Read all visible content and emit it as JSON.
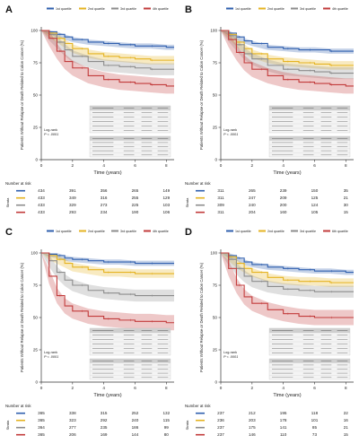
{
  "colors": {
    "q1": "#2f5fae",
    "q2": "#e5b321",
    "q3": "#8c8c8c",
    "q4": "#c23b3b"
  },
  "common": {
    "ylabel": "Patients Without Relapse or Death Related to Colon Cancer (%)",
    "xlabel": "Time (years)",
    "risk_title": "Number at risk",
    "strata_label": "Strata",
    "legend": [
      "1st quartile",
      "2nd quartile",
      "3rd quartile",
      "4th quartile"
    ],
    "legend_alt_last": "6th quartile",
    "yticks": [
      0,
      25,
      50,
      75,
      100
    ],
    "xticks": [
      0,
      2,
      4,
      6,
      8
    ]
  },
  "chart_data": [
    {
      "panel": "A",
      "type": "line",
      "xlabel": "Time (years)",
      "ylabel": "Patients Without Relapse or Death Related to Colon Cancer (%)",
      "xlim": [
        0,
        8.5
      ],
      "ylim": [
        0,
        100
      ],
      "grid": false,
      "legend_position": "top",
      "logrank": [
        "Log-rank",
        "P < .0001"
      ],
      "series": [
        {
          "name": "1st quartile",
          "x": [
            0,
            0.5,
            1,
            1.5,
            2,
            3,
            4,
            5,
            6,
            7,
            8,
            8.5
          ],
          "y": [
            100,
            99,
            97,
            95,
            93,
            91,
            90,
            89,
            88,
            88,
            87,
            87
          ]
        },
        {
          "name": "2nd quartile",
          "x": [
            0,
            0.5,
            1,
            1.5,
            2,
            3,
            4,
            5,
            6,
            7,
            8,
            8.5
          ],
          "y": [
            100,
            98,
            94,
            90,
            86,
            82,
            80,
            79,
            78,
            77,
            77,
            77
          ]
        },
        {
          "name": "3rd quartile",
          "x": [
            0,
            0.5,
            1,
            1.5,
            2,
            3,
            4,
            5,
            6,
            7,
            8,
            8.5
          ],
          "y": [
            100,
            97,
            91,
            85,
            80,
            76,
            73,
            72,
            71,
            70,
            70,
            70
          ]
        },
        {
          "name": "4th quartile",
          "x": [
            0,
            0.5,
            1,
            1.5,
            2,
            3,
            4,
            5,
            6,
            7,
            8,
            8.5
          ],
          "y": [
            100,
            94,
            84,
            76,
            71,
            65,
            62,
            60,
            59,
            58,
            57,
            57
          ]
        }
      ],
      "risk_table": [
        {
          "name": "1st quartile",
          "values": [
            "434",
            "391",
            "356",
            "265",
            "149"
          ]
        },
        {
          "name": "2nd quartile",
          "values": [
            "433",
            "349",
            "316",
            "255",
            "129"
          ]
        },
        {
          "name": "3rd quartile",
          "values": [
            "433",
            "329",
            "273",
            "225",
            "103"
          ]
        },
        {
          "name": "4th quartile",
          "values": [
            "433",
            "293",
            "234",
            "190",
            "106"
          ]
        }
      ]
    },
    {
      "panel": "B",
      "type": "line",
      "xlabel": "Time (years)",
      "ylabel": "Patients Without Relapse or Death Related to Colon Cancer (%)",
      "xlim": [
        0,
        8.5
      ],
      "ylim": [
        0,
        100
      ],
      "grid": false,
      "legend_position": "top",
      "logrank": [
        "Log-rank",
        "P < .0001"
      ],
      "series": [
        {
          "name": "1st quartile",
          "x": [
            0,
            0.5,
            1,
            1.5,
            2,
            3,
            4,
            5,
            6,
            7,
            8,
            8.5
          ],
          "y": [
            100,
            98,
            95,
            92,
            90,
            87,
            86,
            85,
            85,
            84,
            84,
            84
          ]
        },
        {
          "name": "2nd quartile",
          "x": [
            0,
            0.5,
            1,
            1.5,
            2,
            3,
            4,
            5,
            6,
            7,
            8,
            8.5
          ],
          "y": [
            100,
            97,
            91,
            86,
            82,
            78,
            76,
            75,
            74,
            73,
            73,
            73
          ]
        },
        {
          "name": "3rd quartile",
          "x": [
            0,
            0.5,
            1,
            1.5,
            2,
            3,
            4,
            5,
            6,
            7,
            8,
            8.5
          ],
          "y": [
            100,
            96,
            89,
            82,
            78,
            73,
            70,
            69,
            68,
            67,
            67,
            67
          ]
        },
        {
          "name": "4th quartile",
          "x": [
            0,
            0.5,
            1,
            1.5,
            2,
            3,
            4,
            5,
            6,
            7,
            8,
            8.5
          ],
          "y": [
            100,
            93,
            83,
            75,
            70,
            65,
            62,
            60,
            59,
            58,
            57,
            57
          ]
        }
      ],
      "risk_table": [
        {
          "name": "1st quartile",
          "values": [
            "311",
            "265",
            "239",
            "150",
            "35"
          ]
        },
        {
          "name": "2nd quartile",
          "values": [
            "311",
            "247",
            "209",
            "125",
            "21"
          ]
        },
        {
          "name": "3rd quartile",
          "values": [
            "309",
            "240",
            "200",
            "124",
            "30"
          ]
        },
        {
          "name": "4th quartile",
          "values": [
            "311",
            "204",
            "160",
            "105",
            "15"
          ]
        }
      ]
    },
    {
      "panel": "C",
      "type": "line",
      "xlabel": "Time (years)",
      "ylabel": "Patients Without Relapse or Death Related to Colon Cancer (%)",
      "xlim": [
        0,
        8.5
      ],
      "ylim": [
        0,
        100
      ],
      "grid": false,
      "legend_position": "top",
      "logrank": [
        "Log-rank",
        "P < .0001"
      ],
      "series": [
        {
          "name": "1st quartile",
          "x": [
            0,
            0.5,
            1,
            1.5,
            2,
            3,
            4,
            5,
            6,
            7,
            8,
            8.5
          ],
          "y": [
            100,
            99,
            98,
            96,
            95,
            94,
            93,
            93,
            92,
            92,
            92,
            92
          ]
        },
        {
          "name": "2nd quartile",
          "x": [
            0,
            0.5,
            1,
            1.5,
            2,
            3,
            4,
            5,
            6,
            7,
            8,
            8.5
          ],
          "y": [
            100,
            98,
            95,
            92,
            89,
            87,
            85,
            85,
            84,
            84,
            84,
            84
          ]
        },
        {
          "name": "3rd quartile",
          "x": [
            0,
            0.5,
            1,
            1.5,
            2,
            3,
            4,
            5,
            6,
            7,
            8,
            8.5
          ],
          "y": [
            100,
            94,
            85,
            79,
            75,
            71,
            69,
            68,
            67,
            67,
            67,
            67
          ]
        },
        {
          "name": "4th quartile",
          "x": [
            0,
            0.5,
            1,
            1.5,
            2,
            3,
            4,
            5,
            6,
            7,
            8,
            8.5
          ],
          "y": [
            100,
            82,
            67,
            59,
            55,
            51,
            49,
            48,
            47,
            47,
            46,
            46
          ]
        }
      ],
      "risk_table": [
        {
          "name": "1st quartile",
          "values": [
            "365",
            "338",
            "315",
            "252",
            "132"
          ]
        },
        {
          "name": "2nd quartile",
          "values": [
            "365",
            "323",
            "292",
            "240",
            "115"
          ]
        },
        {
          "name": "3rd quartile",
          "values": [
            "364",
            "277",
            "235",
            "186",
            "99"
          ]
        },
        {
          "name": "4th quartile",
          "values": [
            "365",
            "206",
            "169",
            "144",
            "80"
          ]
        }
      ]
    },
    {
      "panel": "D",
      "type": "line",
      "xlabel": "Time (years)",
      "ylabel": "Patients Without Relapse or Death Related to Colon Cancer (%)",
      "xlim": [
        0,
        8.5
      ],
      "ylim": [
        0,
        100
      ],
      "grid": false,
      "legend_position": "top",
      "logrank": [
        "Log-rank",
        "P < .0001"
      ],
      "series": [
        {
          "name": "1st quartile",
          "x": [
            0,
            0.5,
            1,
            1.5,
            2,
            3,
            4,
            5,
            6,
            7,
            8,
            8.5
          ],
          "y": [
            100,
            98,
            96,
            93,
            91,
            89,
            88,
            87,
            86,
            86,
            85,
            85
          ]
        },
        {
          "name": "2nd quartile",
          "x": [
            0,
            0.5,
            1,
            1.5,
            2,
            3,
            4,
            5,
            6,
            7,
            8,
            8.5
          ],
          "y": [
            100,
            97,
            92,
            88,
            85,
            81,
            79,
            78,
            78,
            77,
            77,
            77
          ]
        },
        {
          "name": "3rd quartile",
          "x": [
            0,
            0.5,
            1,
            1.5,
            2,
            3,
            4,
            5,
            6,
            7,
            8,
            8.5
          ],
          "y": [
            100,
            95,
            88,
            82,
            78,
            74,
            72,
            71,
            70,
            70,
            70,
            70
          ]
        },
        {
          "name": "6th quartile",
          "x": [
            0,
            0.5,
            1,
            1.5,
            2,
            3,
            4,
            5,
            6,
            7,
            8,
            8.5
          ],
          "y": [
            100,
            88,
            75,
            66,
            61,
            56,
            53,
            51,
            50,
            50,
            50,
            50
          ]
        }
      ],
      "risk_table": [
        {
          "name": "1st quartile",
          "values": [
            "237",
            "212",
            "195",
            "118",
            "22"
          ]
        },
        {
          "name": "2nd quartile",
          "values": [
            "236",
            "203",
            "178",
            "101",
            "16"
          ]
        },
        {
          "name": "3rd quartile",
          "values": [
            "237",
            "175",
            "141",
            "85",
            "21"
          ]
        },
        {
          "name": "6th quartile",
          "values": [
            "237",
            "146",
            "110",
            "73",
            "15"
          ]
        }
      ]
    }
  ]
}
